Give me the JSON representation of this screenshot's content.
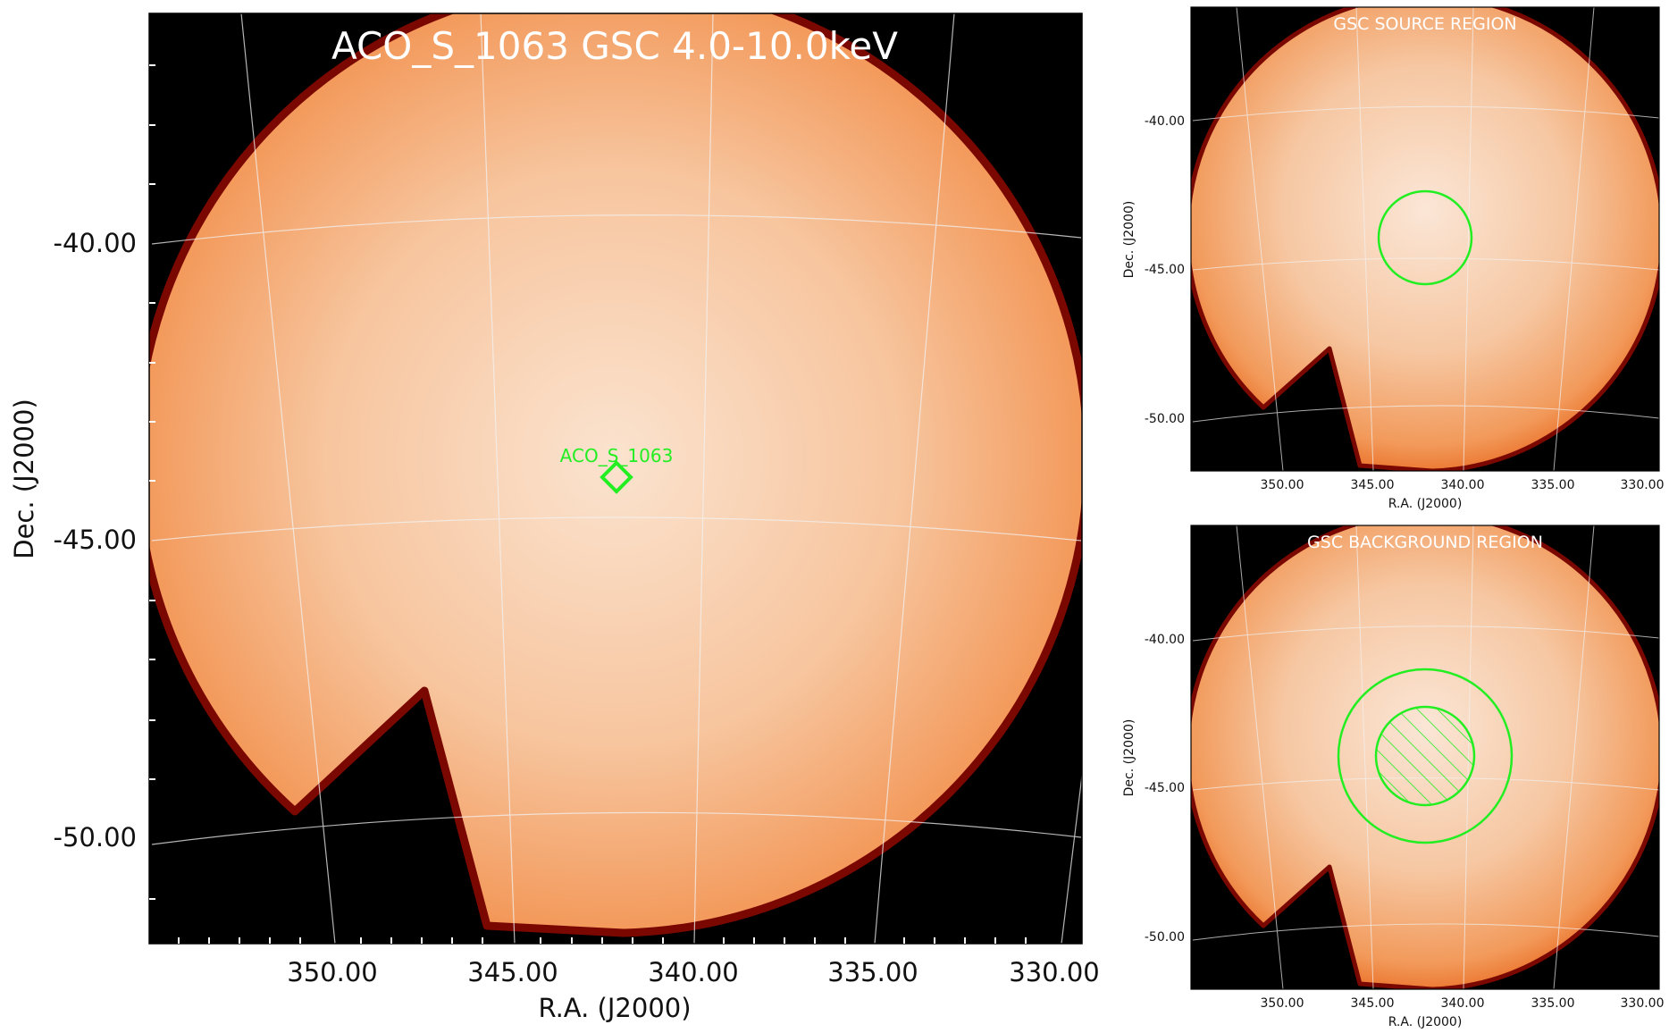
{
  "main_panel": {
    "title": "ACO_S_1063 GSC 4.0-10.0keV",
    "source_marker_label": "ACO_S_1063",
    "x_axis_label": "R.A. (J2000)",
    "y_axis_label": "Dec. (J2000)",
    "x_ticks": [
      "350.00",
      "345.00",
      "340.00",
      "335.00",
      "330.00"
    ],
    "y_ticks": [
      "-40.00",
      "-45.00",
      "-50.00"
    ]
  },
  "source_panel": {
    "title": "GSC SOURCE REGION",
    "x_axis_label": "R.A. (J2000)",
    "y_axis_label": "Dec. (J2000)",
    "x_ticks": [
      "350.00",
      "345.00",
      "340.00",
      "335.00",
      "330.00"
    ],
    "y_ticks": [
      "-40.00",
      "-45.00",
      "-50.00"
    ]
  },
  "background_panel": {
    "title": "GSC BACKGROUND REGION",
    "x_axis_label": "R.A. (J2000)",
    "y_axis_label": "Dec. (J2000)",
    "x_ticks": [
      "350.00",
      "345.00",
      "340.00",
      "335.00",
      "330.00"
    ],
    "y_ticks": [
      "-40.00",
      "-45.00",
      "-50.00"
    ]
  },
  "colors": {
    "background": "#000000",
    "field_outer": "#f08a45",
    "field_inner": "#fbe4d2",
    "edge": "#8a0a00",
    "region": "#22ee22",
    "grid": "#eeeeee"
  }
}
